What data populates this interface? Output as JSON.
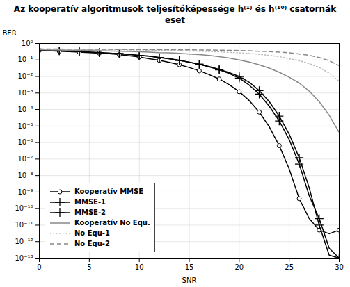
{
  "chart_data": {
    "type": "line",
    "title": "Az kooperatív algoritmusok teljesítőképessége h⁽¹⁾ és h⁽¹⁰⁾ csatornák eset",
    "x_label": "SNR",
    "y_label": "BER",
    "log": "y",
    "xlim": [
      0,
      30
    ],
    "ylim": [
      1e-13,
      1
    ],
    "xticks": [
      0,
      5,
      10,
      15,
      20,
      25,
      30
    ],
    "yticks": [
      {
        "value": 1e-13,
        "label": "10⁻¹³"
      },
      {
        "value": 1e-12,
        "label": "10⁻¹²"
      },
      {
        "value": 1e-11,
        "label": "10⁻¹¹"
      },
      {
        "value": 1e-10,
        "label": "10⁻¹⁰"
      },
      {
        "value": 1e-09,
        "label": "10⁻⁹"
      },
      {
        "value": 1e-08,
        "label": "10⁻⁸"
      },
      {
        "value": 1e-07,
        "label": "10⁻⁷"
      },
      {
        "value": 1e-06,
        "label": "10⁻⁶"
      },
      {
        "value": 1e-05,
        "label": "10⁻⁵"
      },
      {
        "value": 0.0001,
        "label": "10⁻⁴"
      },
      {
        "value": 0.001,
        "label": "10⁻³"
      },
      {
        "value": 0.01,
        "label": "10⁻²"
      },
      {
        "value": 0.1,
        "label": "10⁻¹"
      },
      {
        "value": 1,
        "label": "10⁰"
      }
    ],
    "grid": true,
    "legend": "lower left",
    "x": [
      0,
      1,
      2,
      3,
      4,
      5,
      6,
      7,
      8,
      9,
      10,
      11,
      12,
      13,
      14,
      15,
      16,
      17,
      18,
      19,
      20,
      21,
      22,
      23,
      24,
      25,
      26,
      27,
      28,
      29,
      30
    ],
    "series": [
      {
        "name": "Kooperatív MMSE",
        "color": "black",
        "line_style": "solid",
        "marker": "circle",
        "values": [
          0.38,
          0.36,
          0.34,
          0.32,
          0.3,
          0.28,
          0.26,
          0.24,
          0.21,
          0.18,
          0.15,
          0.12,
          0.095,
          0.072,
          0.052,
          0.035,
          0.022,
          0.013,
          0.007,
          0.0032,
          0.0012,
          0.00035,
          7e-05,
          9e-06,
          6.5e-07,
          2.5e-08,
          4e-10,
          2.5e-11,
          5e-12,
          3e-12,
          5e-12
        ]
      },
      {
        "name": "MMSE-1",
        "color": "black",
        "line_style": "solid",
        "marker": "plus",
        "values": [
          0.4,
          0.38,
          0.36,
          0.34,
          0.32,
          0.3,
          0.28,
          0.26,
          0.24,
          0.22,
          0.19,
          0.17,
          0.14,
          0.12,
          0.095,
          0.073,
          0.055,
          0.038,
          0.025,
          0.015,
          0.008,
          0.003,
          0.00085,
          0.00016,
          2e-05,
          1.5e-06,
          5e-08,
          6e-10,
          2.5e-11,
          4e-13,
          1e-13
        ]
      },
      {
        "name": "MMSE-2",
        "color": "black",
        "line_style": "solid",
        "marker": "plus",
        "values": [
          0.4,
          0.38,
          0.36,
          0.34,
          0.32,
          0.3,
          0.28,
          0.26,
          0.24,
          0.22,
          0.19,
          0.17,
          0.14,
          0.12,
          0.095,
          0.073,
          0.055,
          0.04,
          0.027,
          0.017,
          0.01,
          0.0045,
          0.0014,
          0.0003,
          4e-05,
          3.2e-06,
          1.2e-07,
          1.8e-09,
          1e-11,
          1.5e-13,
          1e-13
        ]
      },
      {
        "name": "Kooperatív No Equ.",
        "color": "#888888",
        "line_style": "solid",
        "values": [
          0.42,
          0.41,
          0.4,
          0.39,
          0.38,
          0.37,
          0.36,
          0.35,
          0.34,
          0.33,
          0.31,
          0.3,
          0.28,
          0.27,
          0.25,
          0.23,
          0.21,
          0.19,
          0.16,
          0.13,
          0.1,
          0.075,
          0.051,
          0.032,
          0.018,
          0.009,
          0.004,
          0.0013,
          0.0003,
          4.5e-05,
          4e-06
        ]
      },
      {
        "name": "No Equ-1",
        "color": "#bbbbbb",
        "line_style": "dotted",
        "values": [
          0.45,
          0.44,
          0.44,
          0.43,
          0.43,
          0.42,
          0.42,
          0.41,
          0.41,
          0.4,
          0.4,
          0.39,
          0.38,
          0.37,
          0.36,
          0.35,
          0.34,
          0.32,
          0.31,
          0.29,
          0.27,
          0.25,
          0.22,
          0.19,
          0.16,
          0.12,
          0.09,
          0.06,
          0.035,
          0.016,
          0.005
        ]
      },
      {
        "name": "No Equ-2",
        "color": "#888888",
        "line_style": "dashed",
        "values": [
          0.47,
          0.46,
          0.46,
          0.45,
          0.45,
          0.44,
          0.44,
          0.44,
          0.43,
          0.43,
          0.43,
          0.42,
          0.42,
          0.42,
          0.41,
          0.41,
          0.4,
          0.4,
          0.39,
          0.38,
          0.37,
          0.36,
          0.34,
          0.32,
          0.3,
          0.27,
          0.23,
          0.19,
          0.14,
          0.09,
          0.045
        ]
      }
    ]
  }
}
